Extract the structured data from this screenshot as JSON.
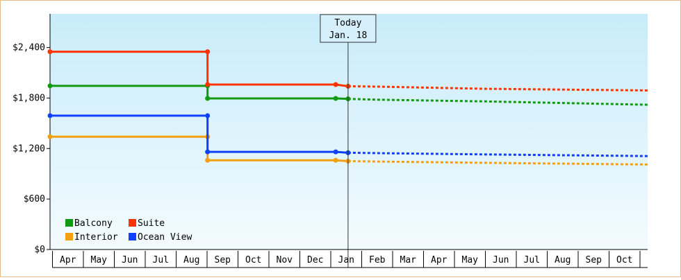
{
  "chart_data": {
    "type": "line",
    "style": "step",
    "y_ticks": [
      "$0",
      "$600",
      "$1,200",
      "$1,800",
      "$2,400"
    ],
    "y_tick_values": [
      0,
      600,
      1200,
      1800,
      2400
    ],
    "ylim": [
      0,
      2800
    ],
    "x_ticks": [
      "Apr",
      "May",
      "Jun",
      "Jul",
      "Aug",
      "Sep",
      "Oct",
      "Nov",
      "Dec",
      "Jan",
      "Feb",
      "Mar",
      "Apr",
      "May",
      "Jun",
      "Jul",
      "Aug",
      "Sep",
      "Oct"
    ],
    "xlim": [
      -0.05,
      19.3
    ],
    "today_marker": {
      "line1": "Today",
      "line2": "Jan. 18",
      "x": 9.6
    },
    "legend": {
      "position": "bottom-left"
    },
    "grid": false,
    "series": [
      {
        "name": "Balcony",
        "color": "#119911",
        "points": [
          [
            -0.05,
            1945
          ],
          [
            5.05,
            1945
          ],
          [
            5.05,
            1795
          ],
          [
            9.2,
            1795
          ],
          [
            9.6,
            1790
          ]
        ],
        "forecast": [
          [
            9.6,
            1790
          ],
          [
            10.6,
            1780
          ],
          [
            14,
            1760
          ],
          [
            19.3,
            1720
          ]
        ]
      },
      {
        "name": "Suite",
        "color": "#ff3300",
        "points": [
          [
            -0.05,
            2350
          ],
          [
            5.05,
            2350
          ],
          [
            5.05,
            1960
          ],
          [
            9.2,
            1960
          ],
          [
            9.6,
            1940
          ]
        ],
        "forecast": [
          [
            9.6,
            1940
          ],
          [
            10.6,
            1935
          ],
          [
            14,
            1910
          ],
          [
            19.3,
            1890
          ]
        ]
      },
      {
        "name": "Interior",
        "color": "#f0a010",
        "points": [
          [
            -0.05,
            1340
          ],
          [
            5.05,
            1340
          ],
          [
            5.05,
            1060
          ],
          [
            9.2,
            1060
          ],
          [
            9.6,
            1050
          ]
        ],
        "forecast": [
          [
            9.6,
            1050
          ],
          [
            10.6,
            1045
          ],
          [
            14,
            1030
          ],
          [
            19.3,
            1010
          ]
        ]
      },
      {
        "name": "Ocean View",
        "color": "#1040ff",
        "points": [
          [
            -0.05,
            1590
          ],
          [
            5.05,
            1590
          ],
          [
            5.05,
            1160
          ],
          [
            9.2,
            1160
          ],
          [
            9.6,
            1150
          ]
        ],
        "forecast": [
          [
            9.6,
            1150
          ],
          [
            10.6,
            1145
          ],
          [
            14,
            1130
          ],
          [
            19.3,
            1110
          ]
        ]
      }
    ]
  }
}
